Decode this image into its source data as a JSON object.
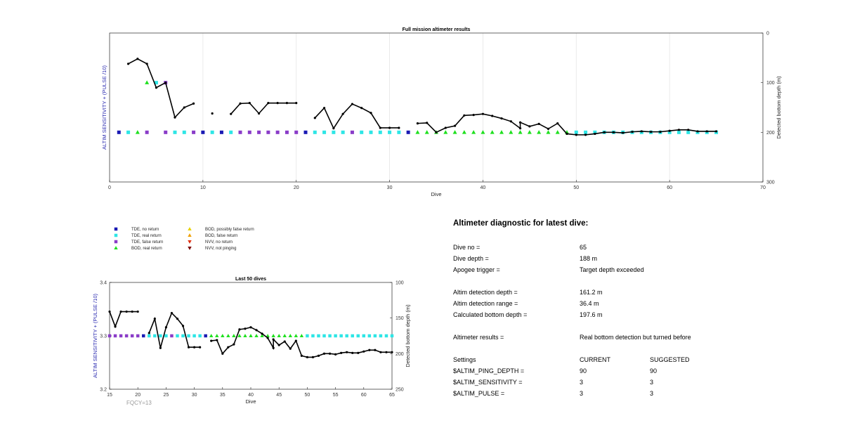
{
  "colors": {
    "tde_no_return": "#1a1ab4",
    "tde_real_return": "#2ee6e6",
    "tde_false_return": "#8a3cc8",
    "bod_real_return": "#1ee01e",
    "bod_possibly_false": "#e8d200",
    "bod_false": "#f0a000",
    "nvv_no_return": "#e03010",
    "nvv_not_pinging": "#7a0000",
    "line": "#000000"
  },
  "legend": [
    {
      "key": "tde_no_return",
      "label": "TDE, no return",
      "marker": "square"
    },
    {
      "key": "tde_real_return",
      "label": "TDE, real return",
      "marker": "square"
    },
    {
      "key": "tde_false_return",
      "label": "TDE, false return",
      "marker": "square"
    },
    {
      "key": "bod_real_return",
      "label": "BOD, real return",
      "marker": "triangle-up"
    },
    {
      "key": "bod_possibly_false",
      "label": "BOD, possibly false return",
      "marker": "triangle-up"
    },
    {
      "key": "bod_false",
      "label": "BOD, false return",
      "marker": "triangle-up"
    },
    {
      "key": "nvv_no_return",
      "label": "NVV, no return",
      "marker": "triangle-down"
    },
    {
      "key": "nvv_not_pinging",
      "label": "NVV, not pinging",
      "marker": "triangle-down"
    }
  ],
  "chart_data": [
    {
      "type": "scatter",
      "title": "Full mission altimeter results",
      "xlabel": "Dive",
      "ylabel_left": "ALTIM SENSITIVITY + (PULSE /10)",
      "ylabel_right": "Detected bottom depth (m)",
      "xlim": [
        0,
        70
      ],
      "xticks": [
        0,
        10,
        20,
        30,
        40,
        50,
        60,
        70
      ],
      "ylim_right": [
        0,
        300
      ],
      "yticks_right": [
        0,
        100,
        200,
        300
      ],
      "right_axis_reversed": true,
      "grid": true,
      "bottom_depth_line": [
        [
          2,
          62
        ],
        [
          3,
          52
        ],
        [
          4,
          62
        ],
        [
          5,
          110
        ],
        [
          6,
          100
        ],
        [
          7,
          170
        ],
        [
          8,
          150
        ],
        [
          9,
          142
        ],
        [
          11,
          162
        ],
        [
          13,
          163
        ],
        [
          14,
          142
        ],
        [
          15,
          141
        ],
        [
          16,
          162
        ],
        [
          17,
          141
        ],
        [
          18,
          141
        ],
        [
          19,
          141
        ],
        [
          20,
          141
        ],
        [
          22,
          171
        ],
        [
          23,
          151
        ],
        [
          24,
          192
        ],
        [
          25,
          163
        ],
        [
          26,
          143
        ],
        [
          27,
          151
        ],
        [
          28,
          161
        ],
        [
          29,
          191
        ],
        [
          30,
          191
        ],
        [
          31,
          191
        ],
        [
          33,
          182
        ],
        [
          34,
          181
        ],
        [
          35,
          200
        ],
        [
          36,
          191
        ],
        [
          37,
          187
        ],
        [
          38,
          166
        ],
        [
          39,
          165
        ],
        [
          40,
          163
        ],
        [
          41,
          167
        ],
        [
          42,
          172
        ],
        [
          43,
          178
        ],
        [
          44,
          192
        ],
        [
          44,
          180
        ],
        [
          45,
          188
        ],
        [
          46,
          183
        ],
        [
          47,
          193
        ],
        [
          48,
          182
        ],
        [
          49,
          203
        ],
        [
          50,
          205
        ],
        [
          51,
          205
        ],
        [
          52,
          203
        ],
        [
          53,
          200
        ],
        [
          54,
          200
        ],
        [
          55,
          201
        ],
        [
          56,
          199
        ],
        [
          57,
          198
        ],
        [
          58,
          199
        ],
        [
          59,
          199
        ],
        [
          60,
          197
        ],
        [
          61,
          195
        ],
        [
          62,
          195
        ],
        [
          63,
          198
        ],
        [
          64,
          198
        ],
        [
          65,
          198
        ]
      ],
      "line_gaps_after_dive": [
        9,
        11,
        20,
        31
      ],
      "status_markers": {
        "tde_no_return": [
          1,
          10,
          12,
          21,
          32
        ],
        "tde_real_return": [
          2,
          7,
          8,
          11,
          13,
          22,
          23,
          24,
          25,
          27,
          28,
          29,
          30,
          31,
          50,
          51,
          52,
          53,
          54,
          55,
          56,
          57,
          58,
          59,
          60,
          61,
          62,
          63,
          64,
          65
        ],
        "tde_false_return": [
          4,
          6,
          9,
          14,
          15,
          16,
          17,
          18,
          19,
          20,
          26
        ],
        "bod_real_return": [
          3,
          33,
          34,
          35,
          36,
          37,
          38,
          39,
          40,
          41,
          42,
          43,
          44,
          45,
          46,
          47,
          48,
          49
        ]
      },
      "upper_markers": [
        {
          "dive": 4,
          "key": "bod_real_return",
          "depth": 100
        },
        {
          "dive": 5,
          "key": "tde_real_return",
          "depth": 100
        },
        {
          "dive": 6,
          "key": "tde_false_return",
          "depth": 100
        }
      ]
    },
    {
      "type": "scatter",
      "title": "Last 50 dives",
      "xlabel": "Dive",
      "ylabel_left": "ALTIM SENSITIVITY + (PULSE /10)",
      "ylabel_right": "Detected bottom depth (m)",
      "xlim": [
        15,
        65
      ],
      "xticks": [
        15,
        20,
        25,
        30,
        35,
        40,
        45,
        50,
        55,
        60,
        65
      ],
      "ylim_left": [
        3.2,
        3.4
      ],
      "yticks_left": [
        "3.2",
        "3.3",
        "3.4"
      ],
      "ylim_right": [
        100,
        250
      ],
      "yticks_right": [
        100,
        150,
        200,
        250
      ],
      "right_axis_reversed": true,
      "marker_row_value": 3.3,
      "annotation": "FQCY=13"
    }
  ],
  "diagnostic": {
    "title": "Altimeter diagnostic for latest dive:",
    "rows": [
      {
        "label": "Dive no =",
        "value": "65"
      },
      {
        "label": "Dive depth =",
        "value": "188 m"
      },
      {
        "label": "Apogee trigger =",
        "value": "Target depth exceeded"
      },
      {
        "label": "Altim detection depth =",
        "value": "161.2 m"
      },
      {
        "label": "Altim detection range =",
        "value": "36.4 m"
      },
      {
        "label": "Calculated bottom depth =",
        "value": "197.6 m"
      },
      {
        "label": "Altimeter results =",
        "value": "Real bottom detection but turned before"
      }
    ],
    "settings": {
      "header": {
        "label": "Settings",
        "current": "CURRENT",
        "suggested": "SUGGESTED"
      },
      "rows": [
        {
          "label": "$ALTIM_PING_DEPTH =",
          "current": "90",
          "suggested": "90"
        },
        {
          "label": "$ALTIM_SENSITIVITY =",
          "current": "3",
          "suggested": "3"
        },
        {
          "label": "$ALTIM_PULSE =",
          "current": "3",
          "suggested": "3"
        }
      ]
    }
  }
}
